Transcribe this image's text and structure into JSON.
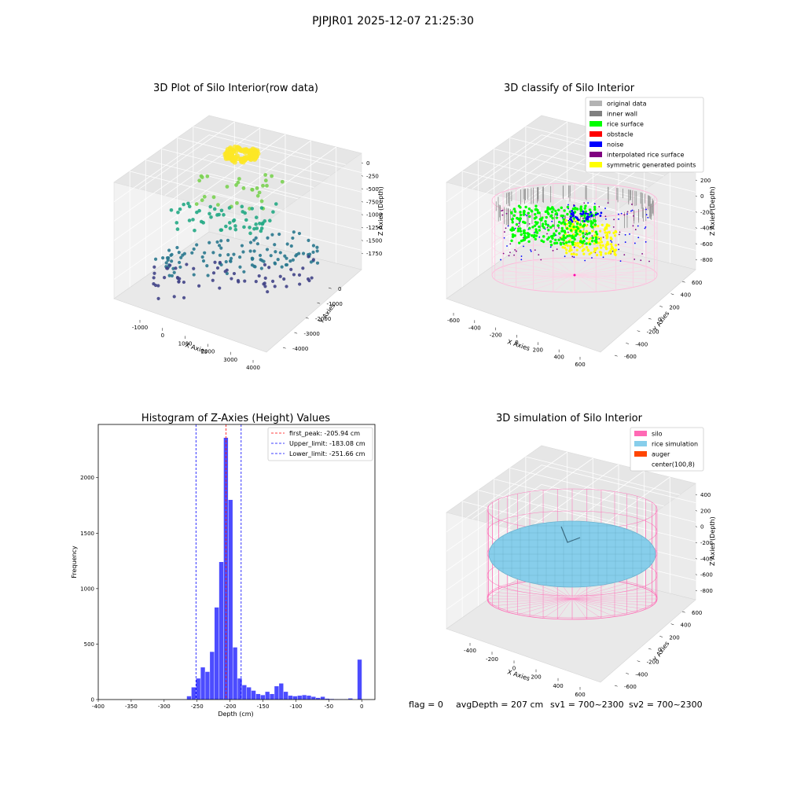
{
  "suptitle": "PJPJR01 2025-12-07 21:25:30",
  "status": {
    "flag": "flag = 0",
    "avg_depth": "avgDepth = 207 cm",
    "sv1": "sv1 = 700~2300",
    "sv2": "sv2 = 700~2300"
  },
  "chart_data": [
    {
      "type": "scatter",
      "title": "3D Plot of Silo Interior(row data)",
      "xlabel": "X Axies",
      "ylabel": "Y Axies",
      "zlabel": "Z Axies (Depth)",
      "x_ticks": [
        "-1000",
        "0",
        "1000",
        "2000",
        "3000",
        "4000"
      ],
      "y_ticks": [
        "-4000",
        "-3000",
        "-2000",
        "-1000",
        "0"
      ],
      "z_ticks": [
        "0",
        "-250",
        "-500",
        "-750",
        "-1000",
        "-1250",
        "-1500",
        "-1750"
      ],
      "colormap": [
        "#440154",
        "#3b528b",
        "#21918c",
        "#5ec962",
        "#fde725"
      ],
      "clusters": [
        {
          "desc": "dense top ring",
          "z": -200,
          "color": "#fde725"
        },
        {
          "desc": "upper scatter",
          "z": -500,
          "color": "#7ad151"
        },
        {
          "desc": "mid layer",
          "z": -900,
          "color": "#22a884"
        },
        {
          "desc": "lower grid",
          "z": -1500,
          "color": "#2a788e"
        },
        {
          "desc": "bottom grid",
          "z": -1800,
          "color": "#414487"
        }
      ]
    },
    {
      "type": "scatter",
      "title": "3D classify of Silo Interior",
      "xlabel": "X Axies",
      "ylabel": "Y Axies",
      "zlabel": "Z Axies (Depth)",
      "x_ticks": [
        "-600",
        "-400",
        "-200",
        "0",
        "200",
        "400",
        "600"
      ],
      "y_ticks": [
        "-600",
        "-400",
        "-200",
        "0",
        "200",
        "400",
        "600"
      ],
      "z_ticks": [
        "200",
        "0",
        "-200",
        "-400",
        "-600",
        "-800"
      ],
      "legend": [
        {
          "label": "original data",
          "color": "#b3b3b3"
        },
        {
          "label": "inner wall",
          "color": "#808080"
        },
        {
          "label": "rice surface",
          "color": "#00ff00"
        },
        {
          "label": "obstacle",
          "color": "#ff0000"
        },
        {
          "label": "noise",
          "color": "#0000ff"
        },
        {
          "label": "interpolated rice surface",
          "color": "#800080"
        },
        {
          "label": "symmetric generated points",
          "color": "#ffff00"
        }
      ]
    },
    {
      "type": "bar",
      "title": "Histogram of Z-Axies (Height) Values",
      "xlabel": "Depth (cm)",
      "ylabel": "Frequency",
      "xlim": [
        -400,
        20
      ],
      "ylim": [
        0,
        2480
      ],
      "x_ticks": [
        -400,
        -350,
        -300,
        -250,
        -200,
        -150,
        -100,
        -50,
        0
      ],
      "y_ticks": [
        0,
        500,
        1000,
        1500,
        2000
      ],
      "bin_width": 6.9,
      "bar_color": "#0000ff",
      "bins": [
        {
          "x": -262,
          "value": 30
        },
        {
          "x": -255,
          "value": 110
        },
        {
          "x": -248,
          "value": 190
        },
        {
          "x": -241,
          "value": 290
        },
        {
          "x": -234,
          "value": 250
        },
        {
          "x": -227,
          "value": 430
        },
        {
          "x": -220,
          "value": 830
        },
        {
          "x": -213,
          "value": 1240
        },
        {
          "x": -206,
          "value": 2360
        },
        {
          "x": -199,
          "value": 1800
        },
        {
          "x": -192,
          "value": 470
        },
        {
          "x": -185,
          "value": 190
        },
        {
          "x": -178,
          "value": 130
        },
        {
          "x": -171,
          "value": 110
        },
        {
          "x": -164,
          "value": 80
        },
        {
          "x": -157,
          "value": 50
        },
        {
          "x": -150,
          "value": 40
        },
        {
          "x": -143,
          "value": 70
        },
        {
          "x": -136,
          "value": 50
        },
        {
          "x": -129,
          "value": 120
        },
        {
          "x": -122,
          "value": 145
        },
        {
          "x": -115,
          "value": 70
        },
        {
          "x": -108,
          "value": 35
        },
        {
          "x": -101,
          "value": 30
        },
        {
          "x": -94,
          "value": 35
        },
        {
          "x": -87,
          "value": 40
        },
        {
          "x": -80,
          "value": 35
        },
        {
          "x": -73,
          "value": 25
        },
        {
          "x": -66,
          "value": 15
        },
        {
          "x": -59,
          "value": 25
        },
        {
          "x": -52,
          "value": 8
        },
        {
          "x": -45,
          "value": 5
        },
        {
          "x": -38,
          "value": 3
        },
        {
          "x": -31,
          "value": 3
        },
        {
          "x": -24,
          "value": 3
        },
        {
          "x": -17,
          "value": 10
        },
        {
          "x": -3,
          "value": 360
        }
      ],
      "vlines": [
        {
          "label": "first_peak: -205.94 cm",
          "x": -205.94,
          "color": "#ff0000"
        },
        {
          "label": "Upper_limit: -183.08 cm",
          "x": -183.08,
          "color": "#0000ff"
        },
        {
          "label": "Lower_limit: -251.66 cm",
          "x": -251.66,
          "color": "#0000ff"
        }
      ]
    },
    {
      "type": "scatter",
      "title": "3D simulation of Silo Interior",
      "xlabel": "X Axies",
      "ylabel": "Y Axies",
      "zlabel": "Z Axies (Depth)",
      "x_ticks": [
        "-400",
        "-200",
        "0",
        "200",
        "400",
        "600"
      ],
      "y_ticks": [
        "-600",
        "-400",
        "-200",
        "0",
        "200",
        "400",
        "600"
      ],
      "z_ticks": [
        "400",
        "200",
        "0",
        "-200",
        "-400",
        "-600",
        "-800"
      ],
      "legend": [
        {
          "label": "silo",
          "color": "#ff69b4"
        },
        {
          "label": "rice simulation",
          "color": "#87ceeb"
        },
        {
          "label": "auger",
          "color": "#ff4500"
        },
        {
          "label": "center(100,8)",
          "color": "#ffffff"
        }
      ]
    }
  ]
}
